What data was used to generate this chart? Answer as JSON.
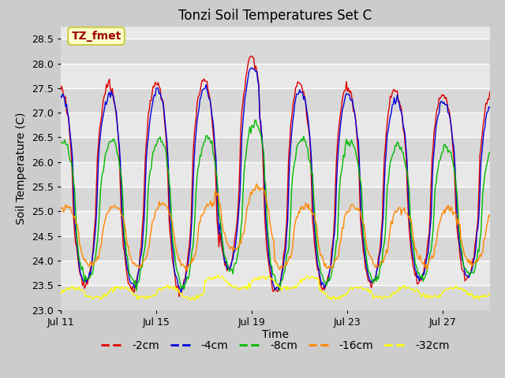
{
  "title": "Tonzi Soil Temperatures Set C",
  "xlabel": "Time",
  "ylabel": "Soil Temperature (C)",
  "annotation_text": "TZ_fmet",
  "annotation_bbox_facecolor": "#ffffcc",
  "annotation_bbox_edgecolor": "#cccc44",
  "annotation_text_color": "#990000",
  "ylim": [
    23.0,
    28.75
  ],
  "yticks": [
    23.0,
    23.5,
    24.0,
    24.5,
    25.0,
    25.5,
    26.0,
    26.5,
    27.0,
    27.5,
    28.0,
    28.5
  ],
  "fig_bg_color": "#cccccc",
  "plot_bg_color": "#e8e8e8",
  "grid_color": "#ffffff",
  "band_colors": [
    "#d8d8d8",
    "#e8e8e8"
  ],
  "series_colors": {
    "-2cm": "#dd0000",
    "-4cm": "#0000dd",
    "-8cm": "#00bb00",
    "-16cm": "#ff8800",
    "-32cm": "#ffff00"
  },
  "series_lw": 1.0,
  "x_ticks_labels": [
    "Jul 11",
    "Jul 15",
    "Jul 19",
    "Jul 23",
    "Jul 27"
  ],
  "x_ticks_positions": [
    0,
    96,
    192,
    288,
    384
  ],
  "n_points": 432,
  "period": 48
}
